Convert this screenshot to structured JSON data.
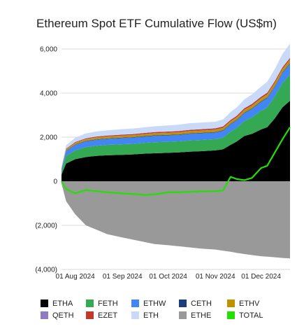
{
  "chart_data": {
    "type": "area",
    "title": "Ethereum Spot ETF Cumulative Flow (US$m)",
    "xlabel": "",
    "ylabel": "",
    "ylim": [
      -4000,
      6000
    ],
    "y_ticks": [
      -4000,
      -2000,
      0,
      2000,
      4000,
      6000
    ],
    "y_tick_labels": [
      "(4,000)",
      "(2,000)",
      "0",
      "2,000",
      "4,000",
      "6,000"
    ],
    "x_range": [
      "2024-07-23",
      "2024-12-20"
    ],
    "x_ticks": [
      "2024-08-01",
      "2024-09-01",
      "2024-10-01",
      "2024-11-01",
      "2024-12-01"
    ],
    "x_tick_labels": [
      "01 Aug 2024",
      "01 Sep 2024",
      "01 Oct 2024",
      "01 Nov 2024",
      "01 Dec 2024"
    ],
    "grid": "horizontal",
    "legend_position": "bottom",
    "dates": [
      "2024-07-23",
      "2024-07-26",
      "2024-08-01",
      "2024-08-08",
      "2024-08-15",
      "2024-08-22",
      "2024-09-01",
      "2024-09-08",
      "2024-09-15",
      "2024-09-22",
      "2024-10-01",
      "2024-10-08",
      "2024-10-15",
      "2024-10-22",
      "2024-11-01",
      "2024-11-06",
      "2024-11-11",
      "2024-11-15",
      "2024-11-20",
      "2024-11-25",
      "2024-12-01",
      "2024-12-05",
      "2024-12-10",
      "2024-12-15",
      "2024-12-20"
    ],
    "series": [
      {
        "name": "ETHA",
        "color": "#000000",
        "stack": "positive",
        "values": [
          300,
          800,
          1000,
          1100,
          1150,
          1180,
          1200,
          1220,
          1250,
          1270,
          1290,
          1310,
          1340,
          1360,
          1400,
          1450,
          1650,
          1800,
          2050,
          2150,
          2350,
          2450,
          2850,
          3350,
          3650
        ]
      },
      {
        "name": "FETH",
        "color": "#34a853",
        "stack": "positive",
        "values": [
          150,
          350,
          400,
          450,
          460,
          470,
          480,
          480,
          490,
          500,
          500,
          500,
          510,
          510,
          510,
          530,
          600,
          620,
          680,
          750,
          850,
          900,
          1000,
          1100,
          1200
        ]
      },
      {
        "name": "ETHW",
        "color": "#4285f4",
        "stack": "positive",
        "values": [
          100,
          220,
          250,
          260,
          270,
          270,
          280,
          280,
          280,
          290,
          290,
          290,
          300,
          300,
          300,
          310,
          330,
          340,
          360,
          380,
          400,
          420,
          440,
          460,
          480
        ]
      },
      {
        "name": "CETH",
        "color": "#1a3e7a",
        "stack": "positive",
        "values": [
          10,
          15,
          18,
          20,
          20,
          20,
          20,
          20,
          22,
          22,
          22,
          22,
          22,
          24,
          24,
          24,
          24,
          24,
          26,
          26,
          26,
          28,
          28,
          28,
          30
        ]
      },
      {
        "name": "ETHV",
        "color": "#bf9000",
        "stack": "positive",
        "values": [
          30,
          60,
          70,
          75,
          78,
          80,
          82,
          84,
          86,
          88,
          90,
          92,
          94,
          96,
          98,
          100,
          105,
          110,
          115,
          120,
          125,
          130,
          135,
          140,
          145
        ]
      },
      {
        "name": "QETH",
        "color": "#8e7cc3",
        "stack": "positive",
        "values": [
          5,
          8,
          10,
          10,
          10,
          10,
          10,
          11,
          11,
          11,
          11,
          11,
          11,
          12,
          12,
          12,
          12,
          12,
          12,
          13,
          13,
          13,
          13,
          13,
          13
        ]
      },
      {
        "name": "EZET",
        "color": "#c0392b",
        "stack": "positive",
        "values": [
          10,
          25,
          30,
          35,
          38,
          40,
          42,
          44,
          46,
          48,
          50,
          52,
          54,
          56,
          58,
          60,
          62,
          64,
          66,
          68,
          70,
          72,
          74,
          76,
          78
        ]
      },
      {
        "name": "ETH",
        "color": "#c9daf8",
        "stack": "positive",
        "values": [
          50,
          150,
          200,
          220,
          230,
          240,
          250,
          255,
          260,
          265,
          280,
          290,
          300,
          300,
          300,
          320,
          360,
          380,
          400,
          430,
          460,
          500,
          550,
          600,
          650
        ]
      },
      {
        "name": "ETHE",
        "color": "#999999",
        "stack": "negative",
        "values": [
          -100,
          -900,
          -1500,
          -2000,
          -2200,
          -2400,
          -2550,
          -2650,
          -2750,
          -2850,
          -2900,
          -2950,
          -3000,
          -3050,
          -3100,
          -3150,
          -3200,
          -3250,
          -3300,
          -3350,
          -3400,
          -3420,
          -3450,
          -3480,
          -3500
        ]
      },
      {
        "name": "TOTAL",
        "color": "#22e000",
        "type": "line",
        "values": [
          0,
          -350,
          -550,
          -400,
          -450,
          -500,
          -550,
          -580,
          -620,
          -600,
          -500,
          -500,
          -480,
          -460,
          -450,
          -420,
          200,
          100,
          50,
          150,
          600,
          700,
          1300,
          1900,
          2450
        ]
      }
    ]
  }
}
